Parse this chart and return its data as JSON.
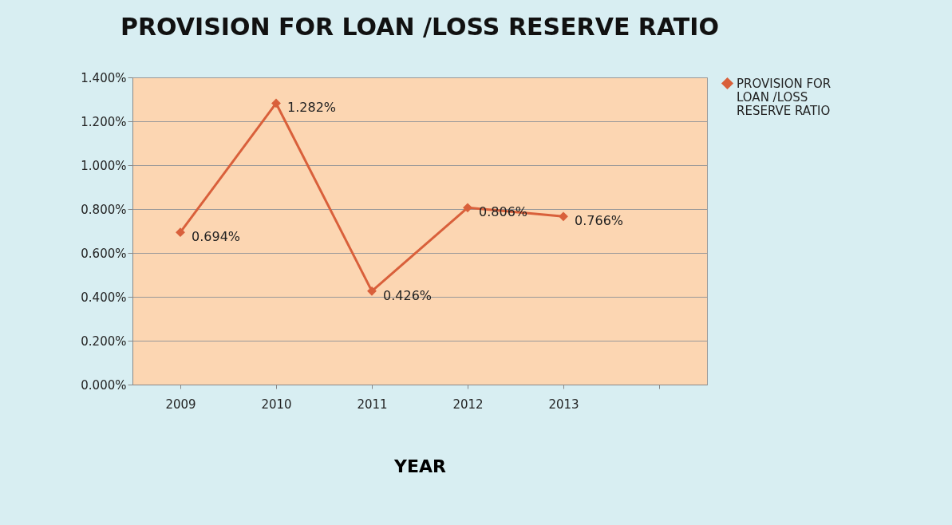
{
  "chart_data": {
    "type": "line",
    "title": "PROVISION FOR LOAN /LOSS RESERVE RATIO",
    "xlabel": "YEAR",
    "categories": [
      "2009",
      "2010",
      "2011",
      "2012",
      "2013",
      null
    ],
    "series": [
      {
        "name": "PROVISION FOR LOAN /LOSS RESERVE RATIO",
        "color": "#d9603b",
        "values": [
          0.694,
          1.282,
          0.426,
          0.806,
          0.766,
          null
        ],
        "value_labels": [
          "0.694%",
          "1.282%",
          "0.426%",
          "0.806%",
          "0.766%",
          null
        ]
      }
    ],
    "ylim": [
      0,
      1.4
    ],
    "yticks": [
      {
        "value": 0,
        "label": "0.000%"
      },
      {
        "value": 0.2,
        "label": "0.200%"
      },
      {
        "value": 0.4,
        "label": "0.400%"
      },
      {
        "value": 0.6,
        "label": "0.600%"
      },
      {
        "value": 0.8,
        "label": "0.800%"
      },
      {
        "value": 1.0,
        "label": "1.000%"
      },
      {
        "value": 1.2,
        "label": "1.200%"
      },
      {
        "value": 1.4,
        "label": "1.400%"
      }
    ],
    "grid": "y",
    "legend": "right",
    "marker": "diamond",
    "line_style": "solid"
  }
}
